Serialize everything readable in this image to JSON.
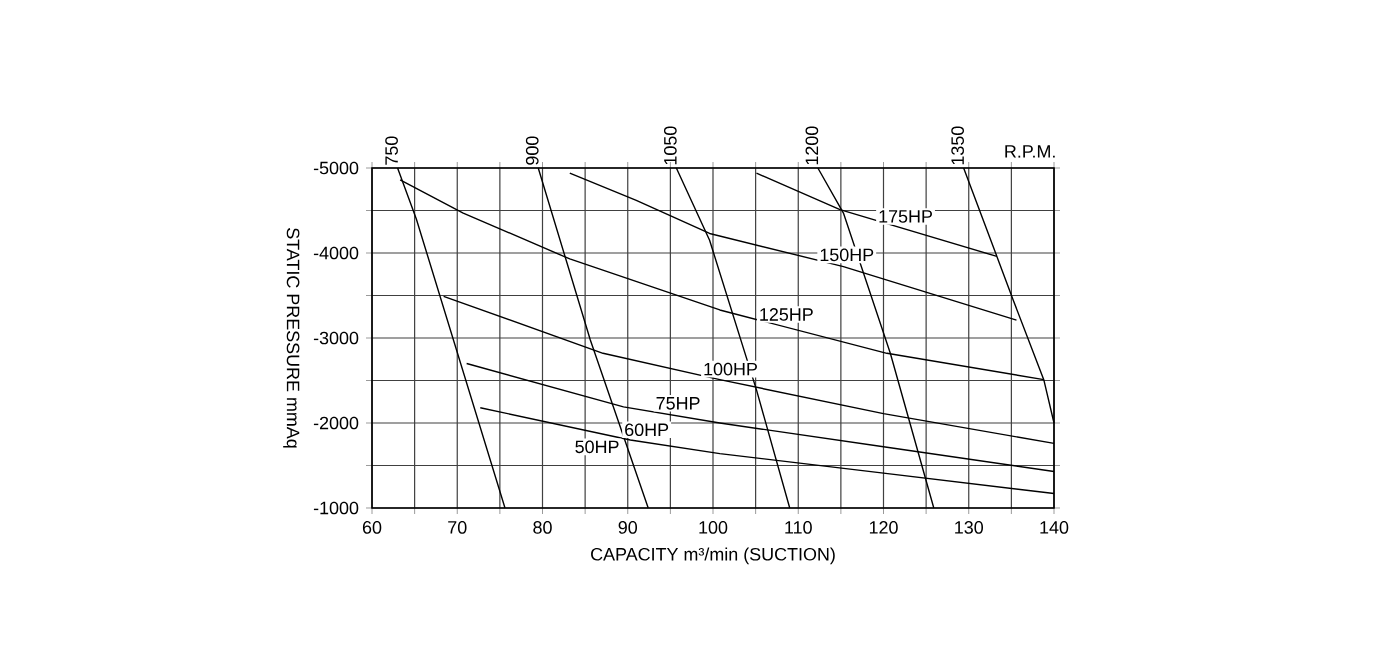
{
  "chart_data": {
    "type": "line",
    "xlabel": "CAPACITY m³/min (SUCTION)",
    "ylabel": "STATIC PRESSURE mmAq",
    "xlim": [
      60,
      140
    ],
    "ylim": [
      -1000,
      -5000
    ],
    "xticks": [
      60,
      {
        "value": 65,
        "label": null
      },
      70,
      {
        "value": 75,
        "label": null
      },
      80,
      {
        "value": 85,
        "label": null
      },
      90,
      {
        "value": 95,
        "label": null
      },
      100,
      {
        "value": 105,
        "label": null
      },
      110,
      {
        "value": 115,
        "label": null
      },
      120,
      {
        "value": 125,
        "label": null
      },
      130,
      {
        "value": 135,
        "label": null
      },
      140
    ],
    "yticks": [
      -5000,
      {
        "value": -4500,
        "label": null
      },
      -4000,
      {
        "value": -3500,
        "label": null
      },
      -3000,
      {
        "value": -2500,
        "label": null
      },
      -2000,
      {
        "value": -1500,
        "label": null
      },
      -1000
    ],
    "grid": true,
    "marker": "none",
    "line_style": "solid",
    "series": [
      {
        "name": "750",
        "color": "#000000",
        "x": [
          63.0,
          65.2,
          75.6
        ],
        "values": [
          -5000,
          -4400,
          -1000
        ]
      },
      {
        "name": "900",
        "color": "#000000",
        "x": [
          79.5,
          85.6,
          92.4
        ],
        "values": [
          -5000,
          -2980,
          -1000
        ]
      },
      {
        "name": "1050",
        "color": "#000000",
        "x": [
          95.7,
          99.6,
          105.1,
          109.0
        ],
        "values": [
          -5000,
          -4150,
          -2390,
          -1000
        ]
      },
      {
        "name": "1200",
        "color": "#000000",
        "x": [
          112.3,
          115.3,
          120.8,
          125.9
        ],
        "values": [
          -5000,
          -4470,
          -2820,
          -1000
        ]
      },
      {
        "name": "1350",
        "color": "#000000",
        "x": [
          129.4,
          133.3,
          135.2,
          138.8,
          140.0
        ],
        "values": [
          -5000,
          -3960,
          -3450,
          -2510,
          -2000
        ]
      },
      {
        "name": "175HP",
        "color": "#000000",
        "x": [
          105.1,
          114.9,
          133.3
        ],
        "values": [
          -4940,
          -4510,
          -3960
        ]
      },
      {
        "name": "150HP",
        "color": "#000000",
        "x": [
          83.2,
          91.0,
          99.6,
          115.3,
          135.6
        ],
        "values": [
          -4940,
          -4620,
          -4230,
          -3840,
          -3210
        ]
      },
      {
        "name": "125HP",
        "color": "#000000",
        "x": [
          63.3,
          70.7,
          83.2,
          100.8,
          120.4,
          138.8
        ],
        "values": [
          -4860,
          -4470,
          -3930,
          -3330,
          -2820,
          -2510
        ]
      },
      {
        "name": "100HP",
        "color": "#000000",
        "x": [
          68.4,
          87.1,
          100.8,
          120.0,
          140.0
        ],
        "values": [
          -3490,
          -2820,
          -2510,
          -2110,
          -1760
        ]
      },
      {
        "name": "75HP",
        "color": "#000000",
        "x": [
          71.1,
          89.5,
          100.8,
          120.0,
          140.0
        ],
        "values": [
          -2700,
          -2190,
          -2000,
          -1720,
          -1430
        ]
      },
      {
        "name": "60HP",
        "color": "#000000",
        "x": [
          72.7,
          90.3,
          100.8,
          120.0,
          140.0
        ],
        "values": [
          -2180,
          -1800,
          -1640,
          -1410,
          -1170
        ]
      }
    ],
    "annotations": [
      "R.P.M.",
      "50HP"
    ]
  }
}
